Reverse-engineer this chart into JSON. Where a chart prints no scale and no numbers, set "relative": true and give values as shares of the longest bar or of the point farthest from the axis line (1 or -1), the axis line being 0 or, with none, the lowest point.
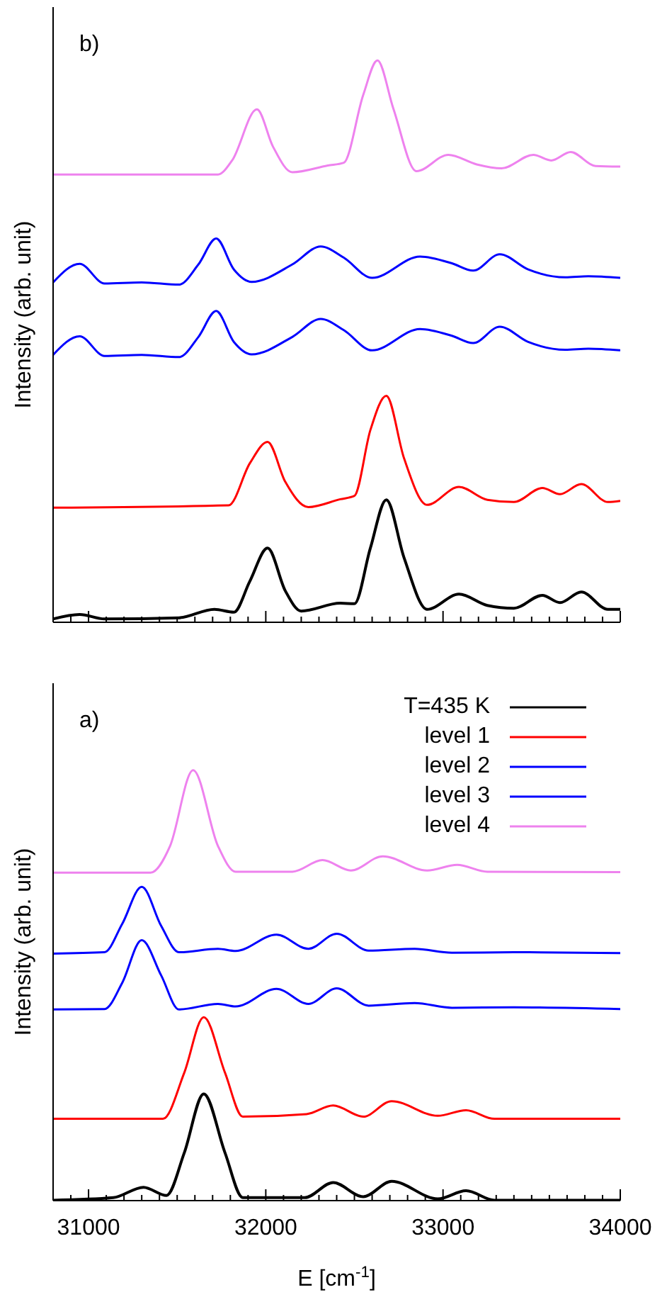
{
  "chart_data": [
    {
      "type": "line",
      "relative": true,
      "ylabel": "Intensity (arb. unit)",
      "annotations": [
        "b)"
      ],
      "xlim": [
        30800,
        34000
      ],
      "tick_labels": false,
      "xticks": [
        {
          "value": 30800,
          "label": null
        },
        {
          "value": 30900,
          "label": null
        },
        31000,
        {
          "value": 31100,
          "label": null
        },
        {
          "value": 31200,
          "label": null
        },
        {
          "value": 31300,
          "label": null
        },
        {
          "value": 31400,
          "label": null
        },
        {
          "value": 31500,
          "label": null
        },
        {
          "value": 31600,
          "label": null
        },
        {
          "value": 31700,
          "label": null
        },
        {
          "value": 31800,
          "label": null
        },
        {
          "value": 31900,
          "label": null
        },
        32000,
        {
          "value": 32100,
          "label": null
        },
        {
          "value": 32200,
          "label": null
        },
        {
          "value": 32300,
          "label": null
        },
        {
          "value": 32400,
          "label": null
        },
        {
          "value": 32500,
          "label": null
        },
        {
          "value": 32600,
          "label": null
        },
        {
          "value": 32700,
          "label": null
        },
        {
          "value": 32800,
          "label": null
        },
        {
          "value": 32900,
          "label": null
        },
        33000,
        {
          "value": 33100,
          "label": null
        },
        {
          "value": 33200,
          "label": null
        },
        {
          "value": 33300,
          "label": null
        },
        {
          "value": 33400,
          "label": null
        },
        {
          "value": 33500,
          "label": null
        },
        {
          "value": 33600,
          "label": null
        },
        {
          "value": 33700,
          "label": null
        },
        {
          "value": 33800,
          "label": null
        },
        {
          "value": 33900,
          "label": null
        },
        34000
      ],
      "series": [
        {
          "color": "#000000",
          "x": [
            30800,
            30950,
            31090,
            31510,
            31710,
            31820,
            31910,
            32010,
            32110,
            32200,
            32420,
            32500,
            32590,
            32680,
            32780,
            32910,
            33090,
            33250,
            33400,
            33560,
            33660,
            33780,
            33930,
            34000
          ],
          "values": [
            0.006,
            0.014,
            0.006,
            0.008,
            0.023,
            0.018,
            0.073,
            0.132,
            0.056,
            0.02,
            0.034,
            0.033,
            0.132,
            0.218,
            0.115,
            0.023,
            0.05,
            0.03,
            0.025,
            0.048,
            0.035,
            0.054,
            0.023,
            0.023
          ]
        },
        {
          "color": "#ff0000",
          "x": [
            30800,
            31790,
            31910,
            32010,
            32110,
            32240,
            32420,
            32500,
            32590,
            32680,
            32780,
            32910,
            33090,
            33250,
            33400,
            33560,
            33660,
            33780,
            33930,
            34000
          ],
          "values": [
            0.204,
            0.208,
            0.283,
            0.321,
            0.25,
            0.205,
            0.219,
            0.225,
            0.342,
            0.403,
            0.292,
            0.209,
            0.241,
            0.218,
            0.214,
            0.239,
            0.228,
            0.246,
            0.214,
            0.216
          ]
        },
        {
          "color": "#0000ff",
          "x": [
            30800,
            30950,
            31090,
            31300,
            31510,
            31620,
            31720,
            31820,
            31920,
            32150,
            32310,
            32440,
            32600,
            32870,
            33050,
            33170,
            33320,
            33480,
            33690,
            33820,
            34000
          ],
          "values": [
            0.476,
            0.509,
            0.474,
            0.476,
            0.472,
            0.508,
            0.554,
            0.499,
            0.477,
            0.508,
            0.54,
            0.52,
            0.484,
            0.522,
            0.51,
            0.497,
            0.526,
            0.499,
            0.485,
            0.487,
            0.484
          ]
        },
        {
          "color": "#0000ff",
          "x": [
            30800,
            30950,
            31090,
            31300,
            31510,
            31620,
            31720,
            31820,
            31920,
            32150,
            32310,
            32440,
            32600,
            32870,
            33050,
            33170,
            33320,
            33480,
            33690,
            33820,
            34000
          ],
          "values": [
            0.605,
            0.638,
            0.603,
            0.605,
            0.601,
            0.637,
            0.683,
            0.628,
            0.606,
            0.637,
            0.669,
            0.649,
            0.613,
            0.651,
            0.639,
            0.626,
            0.655,
            0.628,
            0.614,
            0.616,
            0.613
          ]
        },
        {
          "color": "#ee82ee",
          "x": [
            30800,
            31730,
            31810,
            31950,
            32040,
            32150,
            32350,
            32440,
            32550,
            32630,
            32720,
            32850,
            33030,
            33190,
            33330,
            33510,
            33610,
            33720,
            33860,
            34000
          ],
          "values": [
            0.797,
            0.797,
            0.822,
            0.913,
            0.847,
            0.801,
            0.813,
            0.818,
            0.939,
            1.0,
            0.914,
            0.803,
            0.832,
            0.815,
            0.808,
            0.832,
            0.822,
            0.837,
            0.812,
            0.811
          ]
        }
      ]
    },
    {
      "type": "line",
      "relative": true,
      "ylabel": "Intensity (arb. unit)",
      "xlabel": "E [cm$^{-1}$]",
      "annotations": [
        "a)"
      ],
      "legend": "top right",
      "xlim": [
        30800,
        34000
      ],
      "xticks": [
        {
          "value": 30800,
          "label": null
        },
        {
          "value": 30900,
          "label": null
        },
        31000,
        {
          "value": 31100,
          "label": null
        },
        {
          "value": 31200,
          "label": null
        },
        {
          "value": 31300,
          "label": null
        },
        {
          "value": 31400,
          "label": null
        },
        {
          "value": 31500,
          "label": null
        },
        {
          "value": 31600,
          "label": null
        },
        {
          "value": 31700,
          "label": null
        },
        {
          "value": 31800,
          "label": null
        },
        {
          "value": 31900,
          "label": null
        },
        32000,
        {
          "value": 32100,
          "label": null
        },
        {
          "value": 32200,
          "label": null
        },
        {
          "value": 32300,
          "label": null
        },
        {
          "value": 32400,
          "label": null
        },
        {
          "value": 32500,
          "label": null
        },
        {
          "value": 32600,
          "label": null
        },
        {
          "value": 32700,
          "label": null
        },
        {
          "value": 32800,
          "label": null
        },
        {
          "value": 32900,
          "label": null
        },
        33000,
        {
          "value": 33100,
          "label": null
        },
        {
          "value": 33200,
          "label": null
        },
        {
          "value": 33300,
          "label": null
        },
        {
          "value": 33400,
          "label": null
        },
        {
          "value": 33500,
          "label": null
        },
        {
          "value": 33600,
          "label": null
        },
        {
          "value": 33700,
          "label": null
        },
        {
          "value": 33800,
          "label": null
        },
        {
          "value": 33900,
          "label": null
        },
        34000
      ],
      "series": [
        {
          "name": "T=435 K",
          "color": "#000000",
          "x": [
            30800,
            31140,
            31310,
            31440,
            31540,
            31650,
            31770,
            31870,
            32100,
            32220,
            32380,
            32550,
            32710,
            32970,
            33130,
            33290,
            34000
          ],
          "values": [
            0.001,
            0.007,
            0.031,
            0.012,
            0.111,
            0.248,
            0.111,
            0.007,
            0.007,
            0.007,
            0.042,
            0.009,
            0.045,
            0.004,
            0.023,
            0.001,
            0.001
          ]
        },
        {
          "name": "level 1",
          "color": "#ff0000",
          "x": [
            30800,
            31420,
            31540,
            31650,
            31770,
            31870,
            32230,
            32380,
            32550,
            32710,
            32970,
            33130,
            33290,
            34000
          ],
          "values": [
            0.19,
            0.19,
            0.297,
            0.426,
            0.297,
            0.195,
            0.201,
            0.221,
            0.195,
            0.231,
            0.197,
            0.21,
            0.19,
            0.19
          ]
        },
        {
          "name": "level 2",
          "color": "#0000ff",
          "x": [
            30800,
            31090,
            31190,
            31300,
            31410,
            31510,
            31730,
            31830,
            32060,
            32240,
            32400,
            32580,
            32840,
            33050,
            33400,
            34000
          ],
          "values": [
            0.444,
            0.445,
            0.506,
            0.605,
            0.523,
            0.444,
            0.457,
            0.451,
            0.492,
            0.457,
            0.493,
            0.453,
            0.459,
            0.448,
            0.449,
            0.445
          ]
        },
        {
          "name": "level 3",
          "color": "#0000ff",
          "x": [
            30800,
            31090,
            31190,
            31300,
            31410,
            31510,
            31730,
            31830,
            32060,
            32240,
            32400,
            32580,
            32840,
            33050,
            33400,
            34000
          ],
          "values": [
            0.574,
            0.577,
            0.643,
            0.729,
            0.638,
            0.577,
            0.585,
            0.58,
            0.618,
            0.585,
            0.62,
            0.581,
            0.585,
            0.576,
            0.577,
            0.575
          ]
        },
        {
          "name": "level 4",
          "color": "#ee82ee",
          "x": [
            30800,
            31350,
            31460,
            31590,
            31730,
            31830,
            32150,
            32320,
            32480,
            32660,
            32910,
            33080,
            33250,
            34000
          ],
          "values": [
            0.762,
            0.762,
            0.824,
            1.0,
            0.824,
            0.764,
            0.764,
            0.791,
            0.767,
            0.8,
            0.767,
            0.78,
            0.764,
            0.763
          ]
        }
      ]
    }
  ]
}
